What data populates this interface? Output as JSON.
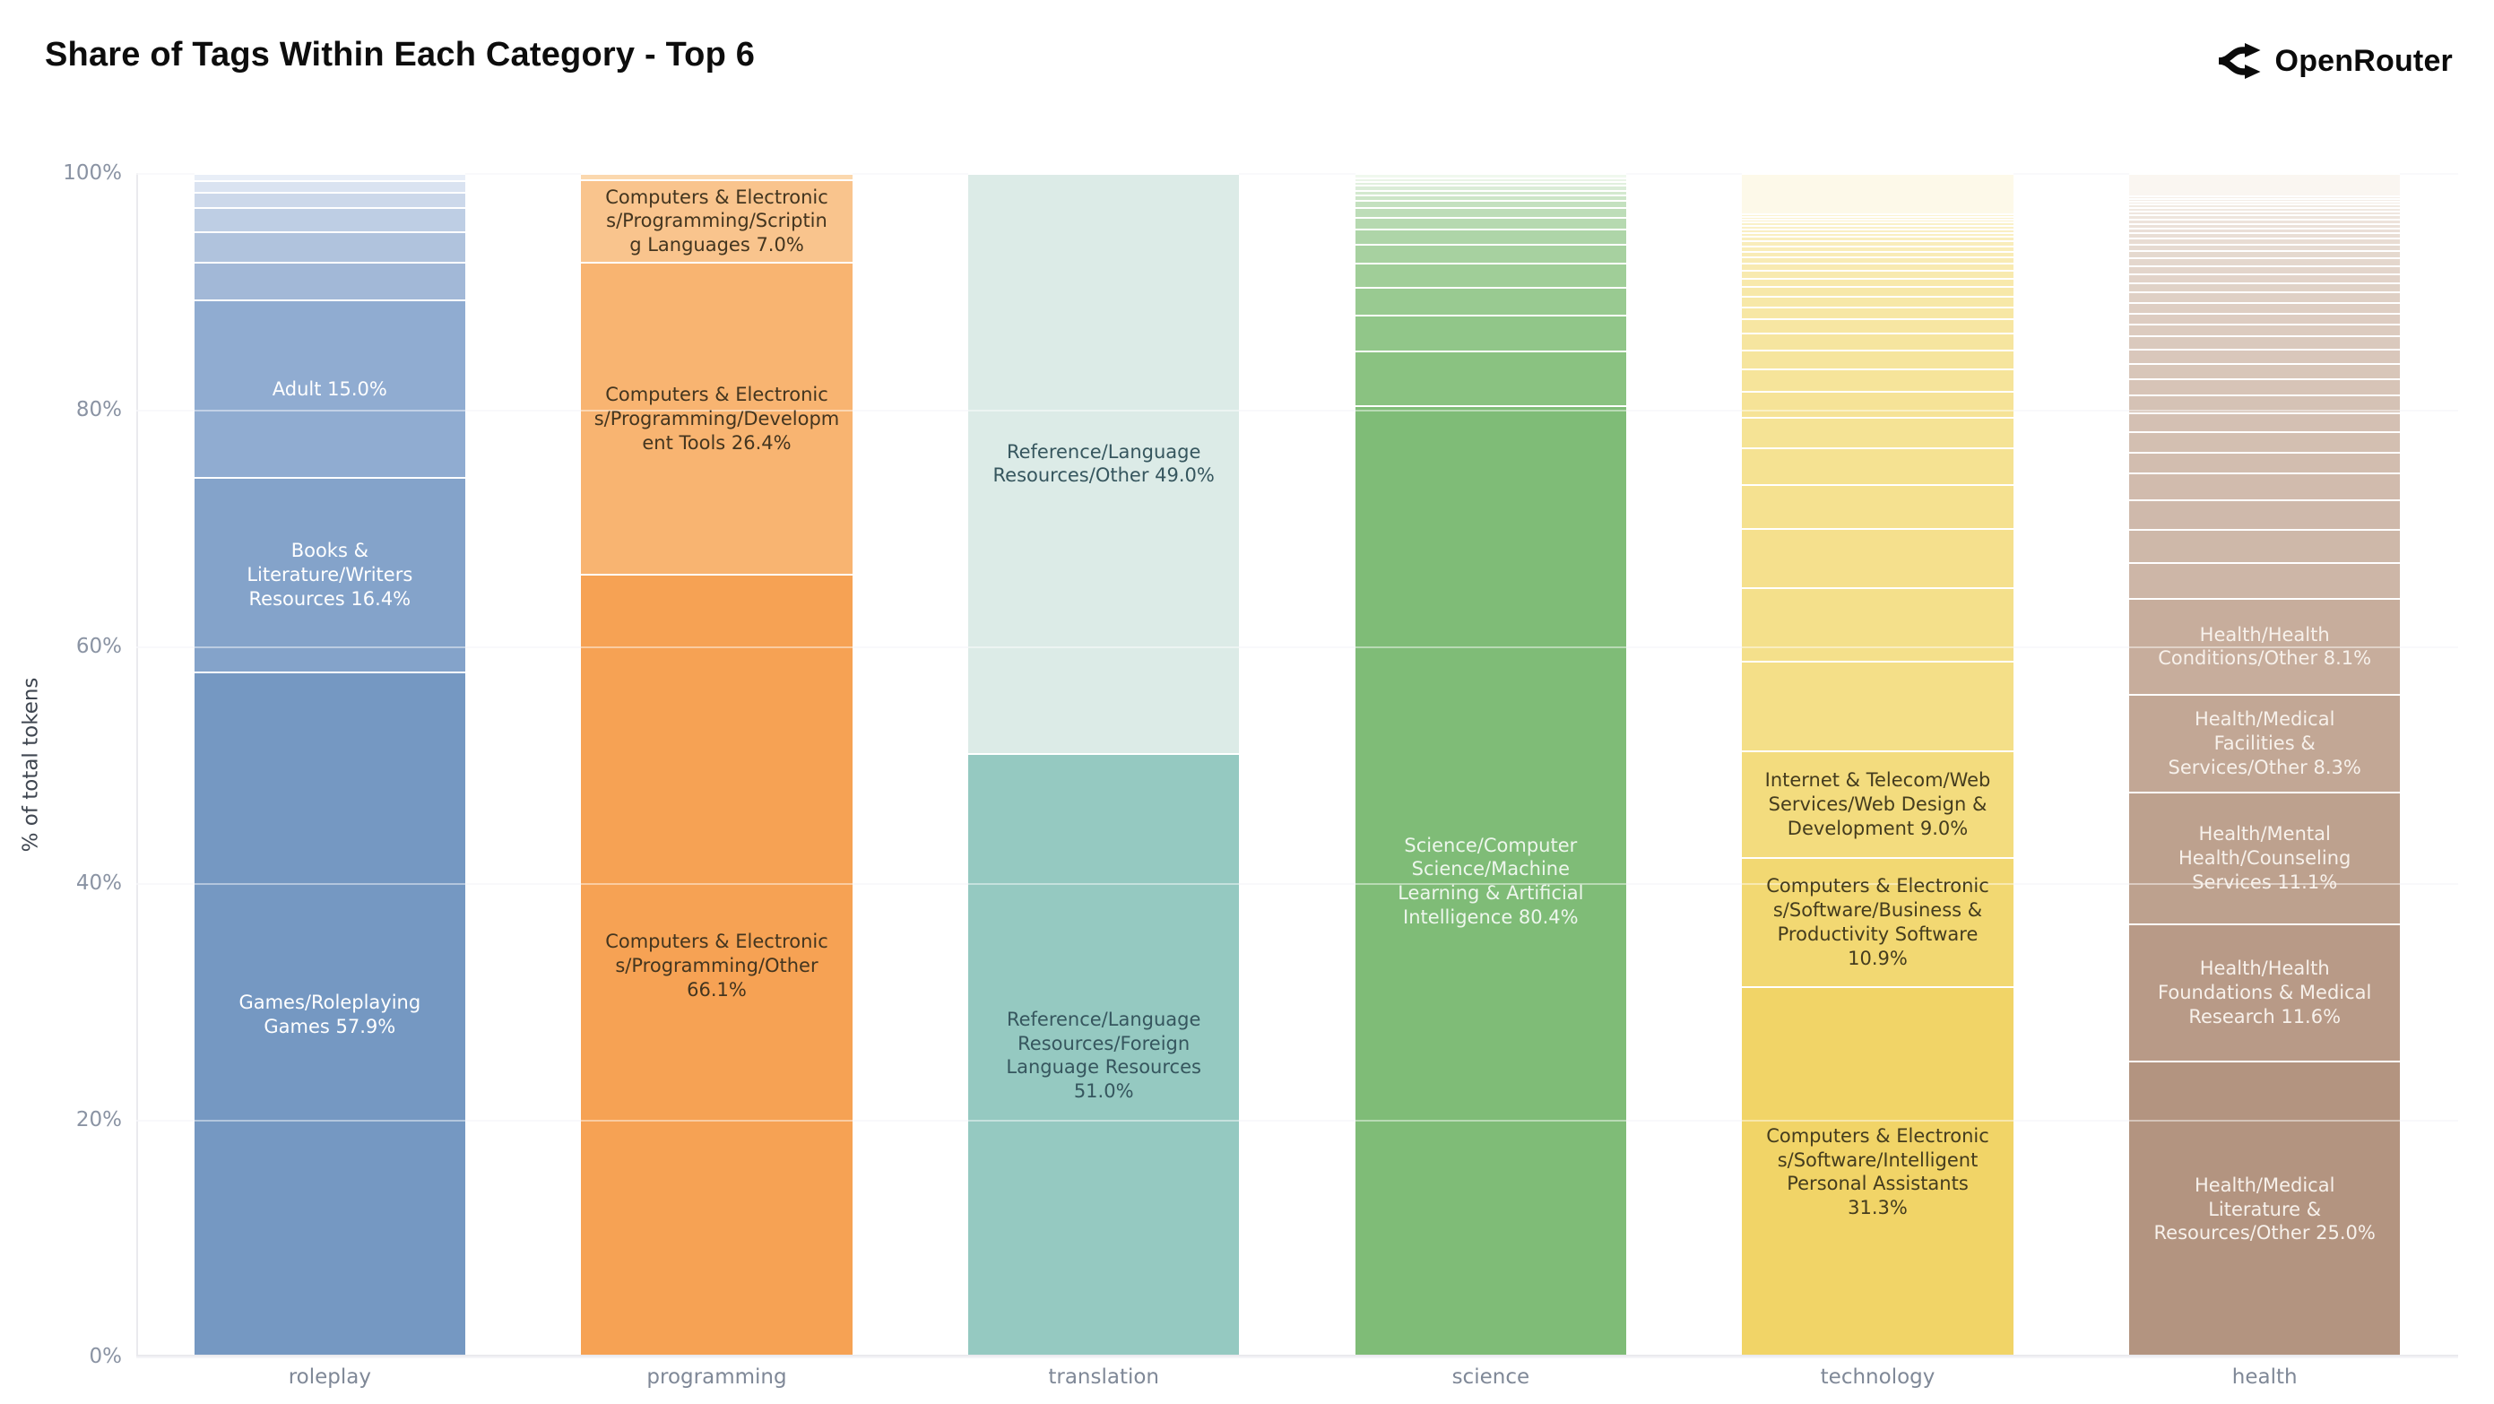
{
  "header": {
    "title": "Share of Tags Within Each Category - Top 6",
    "brand": "OpenRouter"
  },
  "chart_data": {
    "type": "bar",
    "variant": "stacked-percent-column",
    "title": "Share of Tags Within Each Category - Top 6",
    "xlabel": "",
    "ylabel": "% of total tokens",
    "ylim": [
      0,
      100
    ],
    "grid": true,
    "yticks": [
      {
        "label": "0%",
        "value": 0
      },
      {
        "label": "20%",
        "value": 20
      },
      {
        "label": "40%",
        "value": 40
      },
      {
        "label": "60%",
        "value": 60
      },
      {
        "label": "80%",
        "value": 80
      },
      {
        "label": "100%",
        "value": 100
      }
    ],
    "categories": [
      "roleplay",
      "programming",
      "translation",
      "science",
      "technology",
      "health"
    ],
    "bars": [
      {
        "category": "roleplay",
        "label_color": "#ffffff",
        "tail_from": "#a2b8d7",
        "tail_to": "#e8eef7",
        "segments": [
          {
            "value": 57.9,
            "label": "Games/Roleplaying Games 57.9%",
            "color": "#7598c2"
          },
          {
            "value": 16.4,
            "label": "Books & Literature/Writers Resources 16.4%",
            "color": "#84a3ca"
          },
          {
            "value": 15.0,
            "label": "Adult 15.0%",
            "color": "#90acd1"
          },
          {
            "value": 3.2
          },
          {
            "value": 2.6
          },
          {
            "value": 2.0
          },
          {
            "value": 1.3
          },
          {
            "value": 1.0
          },
          {
            "value": 0.6
          }
        ]
      },
      {
        "category": "programming",
        "label_color": "#43351f",
        "tail_from": "#fbd8ae",
        "tail_to": "#fde5c4",
        "segments": [
          {
            "value": 66.1,
            "label": "Computers & Electronics/Programming/Other 66.1%",
            "color": "#f6a254"
          },
          {
            "value": 26.4,
            "label": "Computers & Electronics/Programming/Development Tools 26.4%",
            "color": "#f8b471"
          },
          {
            "value": 7.0,
            "label": "Computers & Electronics/Programming/Scripting Languages 7.0%",
            "color": "#f9c48d"
          },
          {
            "value": 0.5,
            "color": "#fbd8ae"
          }
        ]
      },
      {
        "category": "translation",
        "label_color": "#36565e",
        "tail_from": "#dcebe7",
        "tail_to": "#eef6f3",
        "segments": [
          {
            "value": 51.0,
            "label": "Reference/Language Resources/Foreign Language Resources 51.0%",
            "color": "#95c9c1"
          },
          {
            "value": 49.0,
            "label": "Reference/Language Resources/Other 49.0%",
            "color": "#dcebe7"
          }
        ]
      },
      {
        "category": "science",
        "label_color": "#edf6ec",
        "tail_from": "#8ac281",
        "tail_to": "#f0f8ee",
        "segments": [
          {
            "value": 80.4,
            "label": "Science/Computer Science/Machine Learning & Artificial Intelligence 80.4%",
            "color": "#7fbc77"
          },
          {
            "value": 4.6
          },
          {
            "value": 3.0
          },
          {
            "value": 2.4
          },
          {
            "value": 2.0
          },
          {
            "value": 1.6
          },
          {
            "value": 1.3
          },
          {
            "value": 1.0
          },
          {
            "value": 0.8
          },
          {
            "value": 0.6
          },
          {
            "value": 0.5
          },
          {
            "value": 0.4
          },
          {
            "value": 0.4
          },
          {
            "value": 0.3
          },
          {
            "value": 0.3
          },
          {
            "value": 0.4
          }
        ]
      },
      {
        "category": "technology",
        "label_color": "#443c1e",
        "tail_from": "#f4df88",
        "tail_to": "#fbf3d0",
        "segments": [
          {
            "value": 31.3,
            "label": "Computers & Electronics/Software/Intelligent Personal Assistants 31.3%",
            "color": "#f1d467"
          },
          {
            "value": 10.9,
            "label": "Computers & Electronics/Software/Business & Productivity Software 10.9%",
            "color": "#f2d872"
          },
          {
            "value": 9.0,
            "label": "Internet & Telecom/Web Services/Web Design & Development 9.0%",
            "color": "#f3dc7e"
          },
          {
            "value": 7.6
          },
          {
            "value": 6.2
          },
          {
            "value": 5.0
          },
          {
            "value": 3.7
          },
          {
            "value": 3.1
          },
          {
            "value": 2.6
          },
          {
            "value": 2.2
          },
          {
            "value": 1.9
          },
          {
            "value": 1.6
          },
          {
            "value": 1.4
          },
          {
            "value": 1.2
          },
          {
            "value": 1.05
          },
          {
            "value": 0.9
          },
          {
            "value": 0.8
          },
          {
            "value": 0.7
          },
          {
            "value": 0.65
          },
          {
            "value": 0.6
          },
          {
            "value": 0.55
          },
          {
            "value": 0.5
          },
          {
            "value": 0.45
          },
          {
            "value": 0.4
          },
          {
            "value": 0.38
          },
          {
            "value": 0.35
          },
          {
            "value": 0.32
          },
          {
            "value": 0.3
          },
          {
            "value": 0.28
          },
          {
            "value": 0.25
          },
          {
            "value": 0.22
          },
          {
            "value": 0.2
          },
          {
            "value": 3.4,
            "color": "#fdf9e9"
          }
        ]
      },
      {
        "category": "health",
        "label_color": "#f7f1eb",
        "tail_from": "#cdb6a7",
        "tail_to": "#f5efe9",
        "segments": [
          {
            "value": 25.0,
            "label": "Health/Medical Literature & Resources/Other 25.0%",
            "color": "#b39480"
          },
          {
            "value": 11.6,
            "label": "Health/Health Foundations & Medical Research 11.6%",
            "color": "#b89a87"
          },
          {
            "value": 11.1,
            "label": "Health/Mental Health/Counseling Services 11.1%",
            "color": "#bda18e"
          },
          {
            "value": 8.3,
            "label": "Health/Medical Facilities & Services/Other 8.3%",
            "color": "#c2a795"
          },
          {
            "value": 8.1,
            "label": "Health/Health Conditions/Other 8.1%",
            "color": "#c7ad9c"
          },
          {
            "value": 3.0
          },
          {
            "value": 2.8
          },
          {
            "value": 2.5
          },
          {
            "value": 2.28
          },
          {
            "value": 1.8
          },
          {
            "value": 1.7
          },
          {
            "value": 1.6
          },
          {
            "value": 1.5
          },
          {
            "value": 1.4
          },
          {
            "value": 1.3
          },
          {
            "value": 1.2
          },
          {
            "value": 1.1
          },
          {
            "value": 1.0
          },
          {
            "value": 0.95
          },
          {
            "value": 0.9
          },
          {
            "value": 0.85
          },
          {
            "value": 0.8
          },
          {
            "value": 0.75
          },
          {
            "value": 0.7
          },
          {
            "value": 0.65
          },
          {
            "value": 0.6
          },
          {
            "value": 0.55
          },
          {
            "value": 0.5
          },
          {
            "value": 0.45
          },
          {
            "value": 0.42
          },
          {
            "value": 0.4
          },
          {
            "value": 0.38
          },
          {
            "value": 0.35
          },
          {
            "value": 0.32
          },
          {
            "value": 0.3
          },
          {
            "value": 0.28
          },
          {
            "value": 0.25
          },
          {
            "value": 0.22
          },
          {
            "value": 0.2
          },
          {
            "value": 1.9,
            "color": "#faf6f1"
          }
        ]
      }
    ]
  }
}
